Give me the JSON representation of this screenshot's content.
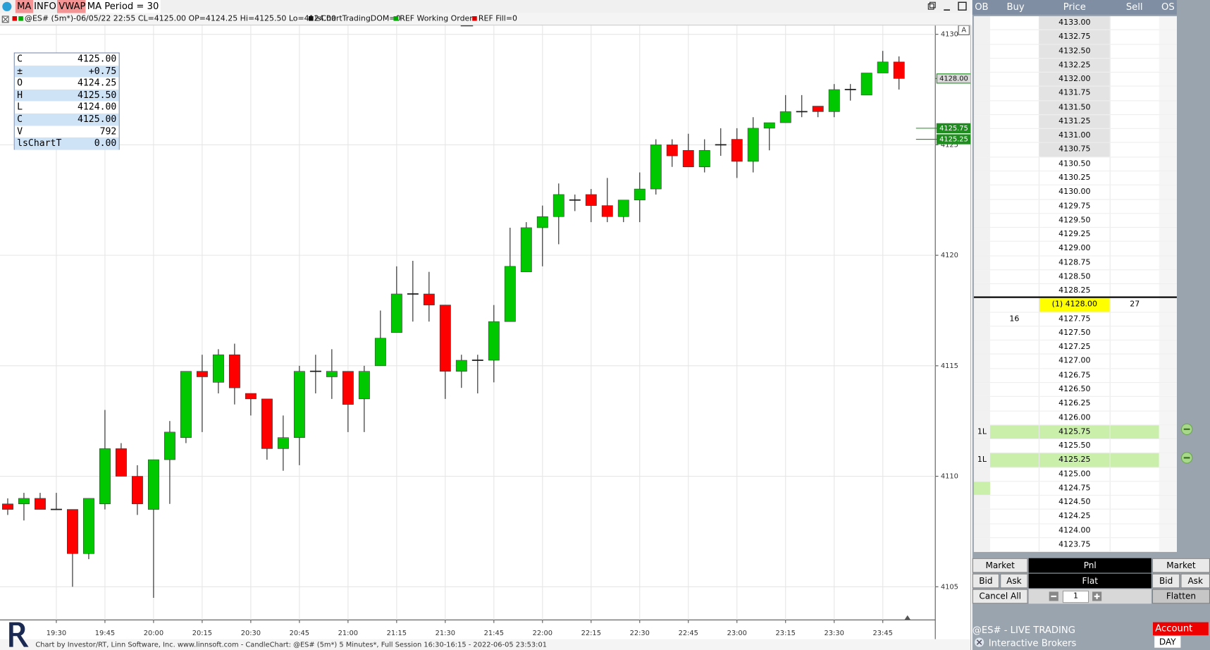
{
  "toolbar": {
    "buttons": [
      "MA",
      "INFO",
      "VWAP",
      "MA Period = 30"
    ]
  },
  "info_line": [
    "@ES# (5m*)-06/05/22 22:55 CL=4125.00 OP=4124.25 Hi=4125.50 Lo=4124.00",
    "lsChartTradingDOM=0",
    "REF Working Orders",
    "REF Fill=0"
  ],
  "data_window": [
    [
      "C",
      "4125.00"
    ],
    [
      "±",
      "+0.75"
    ],
    [
      "O",
      "4124.25"
    ],
    [
      "H",
      "4125.50"
    ],
    [
      "L",
      "4124.00"
    ],
    [
      "C",
      "4125.00"
    ],
    [
      "V",
      "792"
    ],
    [
      "lsChartT",
      "0.00"
    ]
  ],
  "chart_data": {
    "type": "candlestick",
    "footer": "Chart by Investor/RT, Linn Software, Inc. www.linnsoft.com - CandleChart: @ES# (5m*) 5 Minutes*, Full Session 16:30-16:15 - 2022-06-05 23:53:01",
    "scale_button": "A",
    "categories": [
      null,
      null,
      null,
      "19:30",
      null,
      null,
      "19:45",
      null,
      null,
      "20:00",
      null,
      null,
      "20:15",
      null,
      null,
      "20:30",
      null,
      null,
      "20:45",
      null,
      null,
      "21:00",
      null,
      null,
      "21:15",
      null,
      null,
      "21:30",
      null,
      null,
      "21:45",
      null,
      null,
      "22:00",
      null,
      null,
      "22:15",
      null,
      null,
      "22:30",
      null,
      null,
      "22:45",
      null,
      null,
      "23:00",
      null,
      null,
      "23:15",
      null,
      null,
      "23:30",
      null,
      null,
      "23:45",
      null
    ],
    "open": [
      4108.75,
      4108.75,
      4109,
      4108.5,
      4108.5,
      4106.5,
      4108.75,
      4111.25,
      4110,
      4108.5,
      4110.75,
      4111.75,
      4114.75,
      4114.25,
      4115.5,
      4113.75,
      4113.5,
      4111.25,
      4111.75,
      4114.75,
      4114.5,
      4114.75,
      4113.5,
      4115,
      4116.5,
      4118.25,
      4118.25,
      4117.75,
      4114.75,
      4115.25,
      4115.25,
      4117,
      4119.25,
      4121.25,
      4121.75,
      4122.5,
      4122.75,
      4122.25,
      4121.75,
      4122.5,
      4123,
      4125,
      4124.75,
      4124,
      4125,
      4125.25,
      4124.25,
      4125.75,
      4126,
      4126.5,
      4126.75,
      4126.5,
      4127.5,
      4127.25,
      4128.25,
      4128.75
    ],
    "high": [
      4109,
      4109.25,
      4109.25,
      4109.25,
      4108.5,
      4109,
      4113,
      4111.5,
      4110.5,
      4110.75,
      4112.5,
      4114.75,
      4115.5,
      4115.75,
      4116,
      4113.75,
      4113.5,
      4112.75,
      4115,
      4115.5,
      4115.75,
      4114.75,
      4115,
      4117.5,
      4119.5,
      4119.75,
      4119.25,
      4117.75,
      4115.5,
      4115.5,
      4117.75,
      4121.25,
      4121.5,
      4122.25,
      4123.25,
      4122.75,
      4123,
      4123.5,
      4122.5,
      4123.75,
      4125.25,
      4125.25,
      4125.5,
      4125.25,
      4125.75,
      4125.75,
      4126.25,
      4126,
      4127.25,
      4127.25,
      4126.75,
      4127.75,
      4127.75,
      4128.25,
      4129.25,
      4129
    ],
    "low": [
      4108.25,
      4108,
      4108.5,
      4108.5,
      4105,
      4106.25,
      4108.5,
      4110,
      4108.25,
      4104.5,
      4108.75,
      4111.5,
      4112,
      4113.75,
      4113.25,
      4112.75,
      4110.75,
      4110.25,
      4110.5,
      4113.75,
      4113.5,
      4112,
      4112,
      4115,
      4116.5,
      4117,
      4117,
      4113.5,
      4114,
      4113.75,
      4114.25,
      4117,
      4119.25,
      4119.5,
      4120.5,
      4122,
      4121.5,
      4121.5,
      4121.5,
      4121.5,
      4122.75,
      4124,
      4124,
      4123.75,
      4124.5,
      4123.5,
      4123.75,
      4124.75,
      4126,
      4126.25,
      4126.25,
      4126.25,
      4127,
      4127.25,
      4128.25,
      4127.5
    ],
    "close": [
      4108.5,
      4109,
      4108.5,
      4108.5,
      4106.5,
      4109,
      4111.25,
      4110,
      4108.75,
      4110.75,
      4112,
      4114.75,
      4114.5,
      4115.5,
      4114,
      4113.5,
      4111.25,
      4111.75,
      4114.75,
      4114.75,
      4114.75,
      4113.25,
      4114.75,
      4116.25,
      4118.25,
      4118.25,
      4117.75,
      4114.75,
      4115.25,
      4115.25,
      4117,
      4119.5,
      4121.25,
      4121.75,
      4122.75,
      4122.5,
      4122.25,
      4121.75,
      4122.5,
      4123,
      4125,
      4124.5,
      4124,
      4124.75,
      4125,
      4124.25,
      4125.75,
      4126,
      4126.5,
      4126.5,
      4126.5,
      4127.5,
      4127.5,
      4128.25,
      4128.75,
      4128
    ],
    "up_color": "#00c800",
    "down_color": "#ff0000",
    "ylim": [
      4103.5,
      4130.4
    ],
    "yticks": [
      4105,
      4110,
      4115,
      4120,
      4125,
      4130
    ],
    "grid": true,
    "price_labels": [
      {
        "value": 4128,
        "label": "4128.00",
        "color": "#d9d9d9"
      },
      {
        "value": 4125.75,
        "label": "4125.75",
        "color": "#1e8f1e"
      },
      {
        "value": 4125.25,
        "label": "4125.25",
        "color": "#1e8f1e"
      }
    ]
  },
  "dom": {
    "columns": [
      "OB",
      "Buy",
      "Price",
      "Sell",
      "OS"
    ],
    "rows": [
      {
        "price": "4133.00"
      },
      {
        "price": "4132.75"
      },
      {
        "price": "4132.50"
      },
      {
        "price": "4132.25"
      },
      {
        "price": "4132.00"
      },
      {
        "price": "4131.75"
      },
      {
        "price": "4131.50"
      },
      {
        "price": "4131.25"
      },
      {
        "price": "4131.00"
      },
      {
        "price": "4130.75"
      },
      {
        "price": "4130.50"
      },
      {
        "price": "4130.25"
      },
      {
        "price": "4130.00"
      },
      {
        "price": "4129.75"
      },
      {
        "price": "4129.50"
      },
      {
        "price": "4129.25"
      },
      {
        "price": "4129.00"
      },
      {
        "price": "4128.75"
      },
      {
        "price": "4128.50"
      },
      {
        "price": "4128.25"
      },
      {
        "price": "(1) 4128.00",
        "sell": "27"
      },
      {
        "price": "4127.75",
        "buy": "16"
      },
      {
        "price": "4127.50"
      },
      {
        "price": "4127.25"
      },
      {
        "price": "4127.00"
      },
      {
        "price": "4126.75"
      },
      {
        "price": "4126.50"
      },
      {
        "price": "4126.25"
      },
      {
        "price": "4126.00"
      },
      {
        "price": "4125.75",
        "ob": "1L"
      },
      {
        "price": "4125.50"
      },
      {
        "price": "4125.25",
        "ob": "1L"
      },
      {
        "price": "4125.00"
      },
      {
        "price": "4124.75"
      },
      {
        "price": "4124.50"
      },
      {
        "price": "4124.25"
      },
      {
        "price": "4124.00"
      },
      {
        "price": "4123.75"
      }
    ],
    "buttons": [
      "Market",
      "Pnl",
      "Market",
      "Bid",
      "Ask",
      "Flat",
      "Bid",
      "Ask",
      "Cancel All",
      "1",
      "Flatten"
    ]
  },
  "status": [
    "@ES# - LIVE TRADING",
    "Interactive Brokers",
    "Account",
    "DAY"
  ]
}
